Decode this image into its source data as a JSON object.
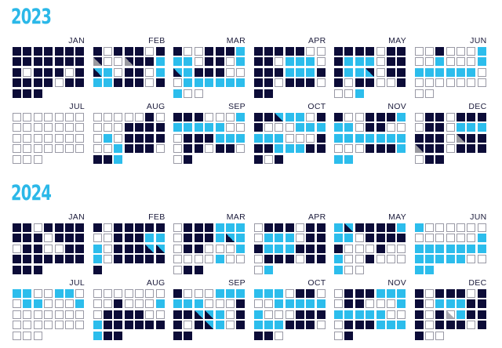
{
  "colors": {
    "dark": "#0c0c38",
    "blue": "#2cbdec",
    "empty_border": "#9a9aa6",
    "title": "#2bb8e8"
  },
  "years": [
    {
      "title": "2023",
      "months": [
        {
          "label": "JAN",
          "rows": [
            "DDDDDDD",
            "DDDDDDD",
            "DWDDDWD",
            "DDDDWDD",
            "DDD"
          ]
        },
        {
          "label": "FEB",
          "rows": [
            "DWDDDWD",
            "GWWGDDB",
            "HBWDDWB",
            "BBDDDWD"
          ]
        },
        {
          "label": "MAR",
          "rows": [
            "DWWDDDB",
            "BBWDDWB",
            "HBDDDWW",
            "WBBBBBB",
            "BWW"
          ]
        },
        {
          "label": "APR",
          "rows": [
            "DDDDDWW",
            "DDWBBBW",
            "DDDBBBD",
            "DDWDDDW",
            "DD"
          ]
        },
        {
          "label": "MAY",
          "rows": [
            "DDDDWDD",
            "DBBBWDD",
            "DBBRWDD",
            "DWDDWWD",
            "WWB"
          ]
        },
        {
          "label": "JUN",
          "rows": [
            "WWDWWWB",
            "WWBWWWB",
            "BBBBBBW",
            "WWWWWWW",
            "WW"
          ]
        },
        {
          "label": "JUL",
          "rows": [
            "WWWWWWW",
            "WWWWWWW",
            "WWWWWWW",
            "WWWWWWW",
            "WWW"
          ]
        },
        {
          "label": "AUG",
          "rows": [
            "WWWWWDW",
            "WWWDDDD",
            "WBWDDDD",
            "WWBDDDW",
            "DDB"
          ]
        },
        {
          "label": "SEP",
          "rows": [
            "DDDWWWB",
            "BBBBBWW",
            "WDDDBBB",
            "WDDWDDW",
            "WD"
          ]
        },
        {
          "label": "OCT",
          "rows": [
            "DDHBBWD",
            "DWWWBBB",
            "BBBWWWD",
            "DDBBBDD",
            "DWD"
          ]
        },
        {
          "label": "NOV",
          "rows": [
            "DWWDDDB",
            "BBWDDWW",
            "BBBBBBB",
            "WWWDDDB",
            "BB"
          ]
        },
        {
          "label": "DEC",
          "rows": [
            "WDDWDDD",
            "WDDWBBB",
            "DDDWGDD",
            "GDDWDDD",
            "WDD"
          ]
        }
      ]
    },
    {
      "title": "2024",
      "months": [
        {
          "label": "JAN",
          "rows": [
            "DDWDDDD",
            "DDDWDDD",
            "WDDWWDD",
            "DDDDDDD",
            "DDD"
          ]
        },
        {
          "label": "FEB",
          "rows": [
            "DWDDDDD",
            "WWDDDBB",
            "BWDDDHH",
            "BWDDDDD",
            "D"
          ]
        },
        {
          "label": "MAR",
          "rows": [
            "WDDDBBB",
            "WDDDBHB",
            "WDDWWWB",
            "WWWWBWW",
            "WDD"
          ]
        },
        {
          "label": "APR",
          "rows": [
            "WDDDWDD",
            "WBBBWDD",
            "DBBBDDD",
            "WDDDWDD",
            "WB"
          ]
        },
        {
          "label": "MAY",
          "rows": [
            "BHDDDDB",
            "BBWDDDD",
            "DWWWDWW",
            "BWWDWWW",
            "BWW"
          ]
        },
        {
          "label": "JUN",
          "rows": [
            "BWWWWWW",
            "WWWWWWB",
            "BBBBBBB",
            "BBBBBWW",
            "BB"
          ]
        },
        {
          "label": "JUL",
          "rows": [
            "BBWWBBW",
            "WBBWWWB",
            "WWWWWWW",
            "WWWWWWW",
            "WWW"
          ]
        },
        {
          "label": "AUG",
          "rows": [
            "WWWWWWW",
            "WWDWWWB",
            "WDDDDWW",
            "BDDDDDD",
            "BDD"
          ]
        },
        {
          "label": "SEP",
          "rows": [
            "DWWWBBB",
            "BBBWWWD",
            "DDHHBWD",
            "DWDHBWD",
            "DD"
          ]
        },
        {
          "label": "OCT",
          "rows": [
            "BBBWDDW",
            "WWBBBBB",
            "BWWWDDD",
            "BBBDDDW",
            "DDW"
          ]
        },
        {
          "label": "NOV",
          "rows": [
            "WDDDBBB",
            "WDDWWWB",
            "BBBBBWW",
            "WDDDBBB",
            "WD"
          ]
        },
        {
          "label": "DEC",
          "rows": [
            "DWDDDWD",
            "DWBBBDD",
            "DWDLBDD",
            "DWDDDWD",
            "DWW"
          ]
        }
      ]
    }
  ]
}
